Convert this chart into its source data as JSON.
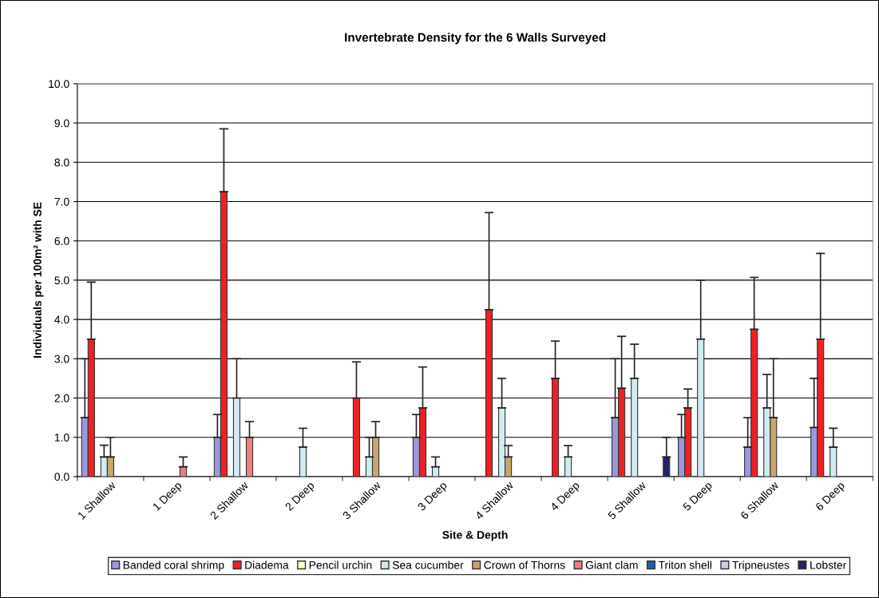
{
  "chart_data": {
    "type": "bar",
    "title": "Invertebrate Density for the 6 Walls Surveyed",
    "xlabel": "Site & Depth",
    "ylabel": "Individuals per 100m² with SE",
    "categories": [
      "1 Shallow",
      "1 Deep",
      "2 Shallow",
      "2 Deep",
      "3 Shallow",
      "3 Deep",
      "4 Shallow",
      "4 Deep",
      "5 Shallow",
      "5 Deep",
      "6 Shallow",
      "6 Deep"
    ],
    "series": [
      {
        "name": "Banded coral shrimp",
        "color": "#9999dd",
        "values": [
          1.5,
          null,
          1.0,
          null,
          null,
          1.0,
          null,
          null,
          1.5,
          1.0,
          0.75,
          1.25
        ],
        "errors": [
          [
            1.5,
            3.0
          ],
          null,
          [
            1.0,
            1.58
          ],
          null,
          null,
          [
            1.0,
            1.58
          ],
          null,
          null,
          [
            1.5,
            3.0
          ],
          [
            1.0,
            1.58
          ],
          [
            0.75,
            1.5
          ],
          [
            1.25,
            2.5
          ]
        ]
      },
      {
        "name": "Diadema",
        "color": "#ee2026",
        "values": [
          3.5,
          null,
          7.25,
          null,
          2.0,
          1.75,
          4.25,
          2.5,
          2.25,
          1.75,
          3.75,
          3.5
        ],
        "errors": [
          [
            3.5,
            4.95
          ],
          null,
          [
            7.25,
            8.85
          ],
          null,
          [
            2.0,
            2.92
          ],
          [
            1.75,
            2.79
          ],
          [
            4.25,
            6.72
          ],
          [
            2.5,
            3.45
          ],
          [
            2.25,
            3.57
          ],
          [
            1.75,
            2.23
          ],
          [
            3.75,
            5.07
          ],
          [
            3.5,
            5.68
          ]
        ]
      },
      {
        "name": "Pencil urchin",
        "color": "#ffffcc",
        "values": [
          null,
          null,
          null,
          null,
          null,
          null,
          null,
          null,
          null,
          null,
          null,
          null
        ]
      },
      {
        "name": "Sea cucumber",
        "color": "#d0ecf2",
        "values": [
          0.5,
          null,
          2.0,
          0.75,
          0.5,
          0.25,
          1.75,
          0.5,
          2.5,
          3.5,
          1.75,
          0.75
        ],
        "errors": [
          [
            0.5,
            0.8
          ],
          null,
          [
            2.0,
            3.0
          ],
          [
            0.75,
            1.23
          ],
          [
            0.5,
            1.0
          ],
          [
            0.25,
            0.5
          ],
          [
            1.75,
            2.5
          ],
          [
            0.5,
            0.79
          ],
          [
            2.5,
            3.37
          ],
          [
            3.5,
            5.0
          ],
          [
            1.75,
            2.6
          ],
          [
            0.75,
            1.23
          ]
        ]
      },
      {
        "name": "Crown of Thorns",
        "color": "#c8a66c",
        "values": [
          0.5,
          null,
          null,
          null,
          1.0,
          null,
          0.5,
          null,
          null,
          null,
          1.5,
          null
        ],
        "errors": [
          [
            0.5,
            1.0
          ],
          null,
          null,
          null,
          [
            1.0,
            1.4
          ],
          null,
          [
            0.5,
            0.79
          ],
          null,
          null,
          null,
          [
            1.5,
            3.0
          ],
          null
        ]
      },
      {
        "name": "Giant clam",
        "color": "#f08080",
        "values": [
          null,
          0.25,
          1.0,
          null,
          null,
          null,
          null,
          null,
          null,
          null,
          null,
          null
        ],
        "errors": [
          null,
          [
            0.25,
            0.5
          ],
          [
            1.0,
            1.4
          ],
          null,
          null,
          null,
          null,
          null,
          null,
          null,
          null,
          null
        ]
      },
      {
        "name": "Triton shell",
        "color": "#1f5fa8",
        "values": [
          null,
          null,
          null,
          null,
          null,
          null,
          null,
          null,
          null,
          null,
          null,
          null
        ]
      },
      {
        "name": "Tripneustes",
        "color": "#ccccee",
        "values": [
          null,
          null,
          null,
          null,
          null,
          null,
          null,
          null,
          null,
          null,
          null,
          null
        ]
      },
      {
        "name": "Lobster",
        "color": "#22226a",
        "values": [
          null,
          null,
          null,
          null,
          null,
          null,
          null,
          null,
          0.5,
          null,
          null,
          null
        ],
        "errors": [
          null,
          null,
          null,
          null,
          null,
          null,
          null,
          null,
          [
            0.5,
            1.0
          ],
          null,
          null,
          null
        ]
      }
    ],
    "ylim": [
      0,
      10
    ],
    "yticks": [
      {
        "value": 0,
        "label": "0.0"
      },
      {
        "value": 1,
        "label": "1.0"
      },
      {
        "value": 2,
        "label": "2.0"
      },
      {
        "value": 3,
        "label": "3.0"
      },
      {
        "value": 4,
        "label": "4.0"
      },
      {
        "value": 5,
        "label": "5.0"
      },
      {
        "value": 6,
        "label": "6.0"
      },
      {
        "value": 7,
        "label": "7.0"
      },
      {
        "value": 8,
        "label": "8.0"
      },
      {
        "value": 9,
        "label": "9.0"
      },
      {
        "value": 10,
        "label": "10.0"
      }
    ],
    "grid": "y",
    "legend": "bottom"
  }
}
